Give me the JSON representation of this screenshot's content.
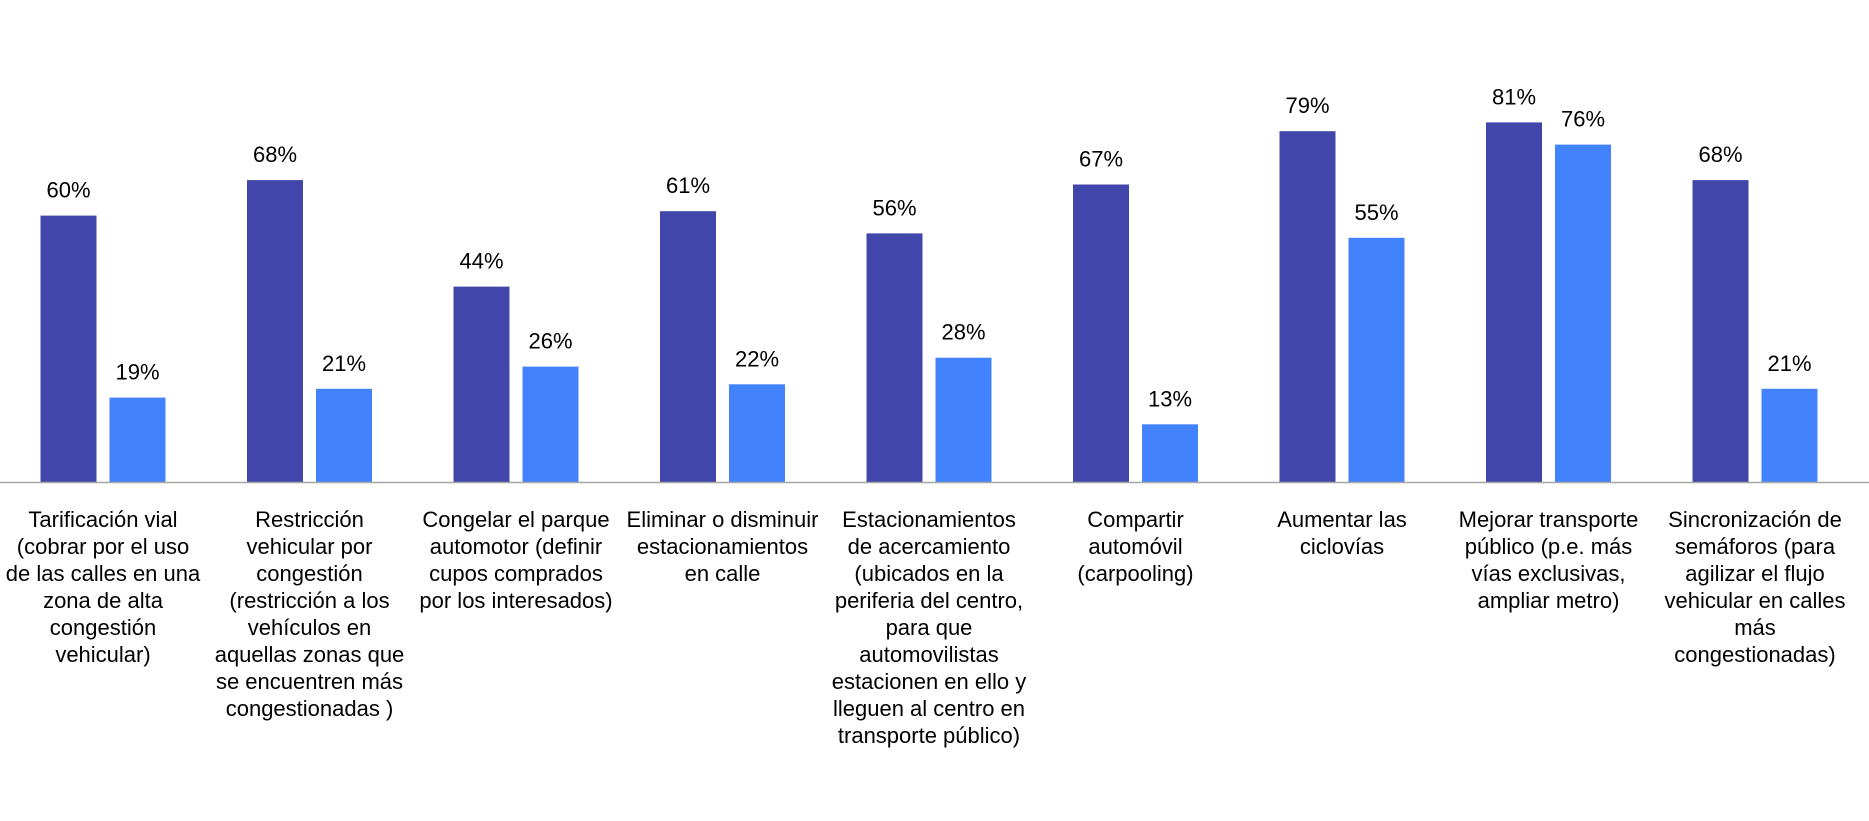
{
  "chart_data": {
    "type": "bar",
    "categories": [
      "Tarificación vial (cobrar por el uso de las calles en una zona de alta congestión vehicular)",
      "Restricción vehicular por congestión (restricción a los vehículos en aquellas zonas que se encuentren más congestionadas )",
      "Congelar el parque automotor (definir cupos comprados por los interesados)",
      "Eliminar o disminuir estacionamientos en calle",
      "Estacionamientos de acercamiento (ubicados en la periferia del centro, para que automovilistas estacionen en ello y lleguen al centro en transporte público)",
      "Compartir automóvil (carpooling)",
      "Aumentar las ciclovías",
      "Mejorar transporte público (p.e. más vías exclusivas, ampliar metro)",
      "Sincronización de semáforos (para agilizar el flujo vehicular en calles más congestionadas)"
    ],
    "series": [
      {
        "values": [
          60,
          68,
          44,
          61,
          56,
          67,
          79,
          81,
          68
        ],
        "labels": [
          "60%",
          "68%",
          "44%",
          "61%",
          "56%",
          "67%",
          "79%",
          "81%",
          "68%"
        ],
        "color": "#4147AA"
      },
      {
        "values": [
          19,
          21,
          26,
          22,
          28,
          13,
          55,
          76,
          21
        ],
        "labels": [
          "19%",
          "21%",
          "26%",
          "22%",
          "28%",
          "13%",
          "55%",
          "76%",
          "21%"
        ],
        "color": "#4283FD"
      }
    ],
    "ylim": [
      0,
      100
    ],
    "grid": false,
    "legend": "none",
    "axis_color": "#A6A6A6"
  }
}
